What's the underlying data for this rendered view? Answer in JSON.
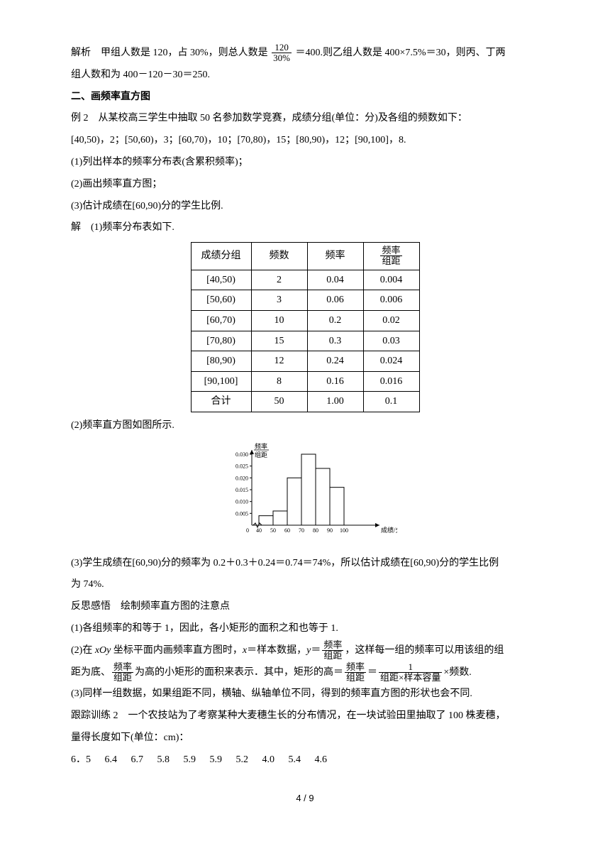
{
  "p1a": "解析　甲组人数是 120，占 30%，则总人数是",
  "p1_frac_num": "120",
  "p1_frac_den": "30%",
  "p1b": "＝400.则乙组人数是 400×7.5%＝30，则丙、丁两",
  "p2": "组人数和为 400－120－30＝250.",
  "h2": "二、画频率直方图",
  "ex2": "例 2　从某校高三学生中抽取 50 名参加数学竞赛，成绩分组(单位：分)及各组的频数如下：",
  "groups": "[40,50)，2；[50,60)，3；[60,70)，10；[70,80)，15；[80,90)，12；[90,100]，8.",
  "q1": "(1)列出样本的频率分布表(含累积频率)；",
  "q2": "(2)画出频率直方图；",
  "q3": "(3)估计成绩在[60,90)分的学生比例.",
  "ans_intro": "解　(1)频率分布表如下.",
  "table": {
    "headers": [
      "成绩分组",
      "频数",
      "频率"
    ],
    "header4_num": "频率",
    "header4_den": "组距",
    "rows": [
      [
        "[40,50)",
        "2",
        "0.04",
        "0.004"
      ],
      [
        "[50,60)",
        "3",
        "0.06",
        "0.006"
      ],
      [
        "[60,70)",
        "10",
        "0.2",
        "0.02"
      ],
      [
        "[70,80)",
        "15",
        "0.3",
        "0.03"
      ],
      [
        "[80,90)",
        "12",
        "0.24",
        "0.024"
      ],
      [
        "[90,100]",
        "8",
        "0.16",
        "0.016"
      ],
      [
        "合计",
        "50",
        "1.00",
        "0.1"
      ]
    ]
  },
  "p_hist": "(2)频率直方图如图所示.",
  "chart": {
    "ylabel_num": "频率",
    "ylabel_den": "组距",
    "xlabel": "成绩/分",
    "yticks": [
      "0.005",
      "0.010",
      "0.015",
      "0.020",
      "0.025",
      "0.030"
    ],
    "xticks": [
      "0",
      "40",
      "50",
      "60",
      "70",
      "80",
      "90",
      "100"
    ],
    "bars": [
      0.004,
      0.006,
      0.02,
      0.03,
      0.024,
      0.016
    ],
    "color": "#000000"
  },
  "p3": "(3)学生成绩在[60,90)分的频率为 0.2＋0.3＋0.24＝0.74＝74%，所以估计成绩在[60,90)分的学生比例",
  "p3b": "为 74%.",
  "reflect": "反思感悟　绘制频率直方图的注意点",
  "r1": "(1)各组频率的和等于 1，因此，各小矩形的面积之和也等于 1.",
  "r2a": "(2)在 ",
  "r2_xoy": "xOy",
  "r2b": " 坐标平面内画频率直方图时，",
  "r2_x": "x",
  "r2c": "＝样本数据，",
  "r2_y": "y",
  "r2d": "＝",
  "r2_frac_num": "频率",
  "r2_frac_den": "组距",
  "r2e": "，这样每一组的频率可以用该组的组",
  "r3a": "距为底、",
  "r3b": "为高的小矩形的面积来表示．其中，矩形的高＝",
  "r3c": "＝",
  "r3_frac2_num": "1",
  "r3_frac2_den": "组距×样本容量",
  "r3d": "×频数.",
  "r4": "(3)同样一组数据，如果组距不同，横轴、纵轴单位不同，得到的频率直方图的形状也会不同.",
  "track": "跟踪训练 2　一个农技站为了考察某种大麦穗生长的分布情况，在一块试验田里抽取了 100 株麦穗，",
  "track2": "量得长度如下(单位：cm)：",
  "data_row": [
    "6．5",
    "6.4",
    "6.7",
    "5.8",
    "5.9",
    "5.9",
    "5.2",
    "4.0",
    "5.4",
    "4.6"
  ],
  "page": "4 / 9"
}
